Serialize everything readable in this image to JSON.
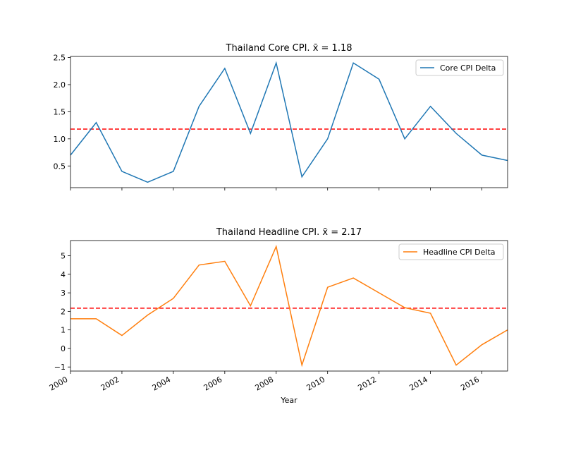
{
  "chart_data": [
    {
      "type": "line",
      "title": "Thailand Core CPI. x̄ = 1.18",
      "xlabel": "",
      "ylabel": "",
      "x": [
        2000,
        2001,
        2002,
        2003,
        2004,
        2005,
        2006,
        2007,
        2008,
        2009,
        2010,
        2011,
        2012,
        2013,
        2014,
        2015,
        2016,
        2017
      ],
      "series": [
        {
          "name": "Core CPI Delta",
          "color": "#1f77b4",
          "values": [
            0.7,
            1.3,
            0.4,
            0.2,
            0.4,
            1.6,
            2.3,
            1.1,
            2.4,
            0.3,
            1.0,
            2.4,
            2.1,
            1.0,
            1.6,
            1.1,
            0.7,
            0.6
          ]
        }
      ],
      "mean": 1.18,
      "mean_line_color": "#ff0000",
      "xlim": [
        2000,
        2017
      ],
      "ylim": [
        0.1,
        2.52
      ],
      "yticks": [
        0.5,
        1.0,
        1.5,
        2.0,
        2.5
      ],
      "ytick_labels": [
        "0.5",
        "1.0",
        "1.5",
        "2.0",
        "2.5"
      ],
      "legend": "top-right",
      "show_x_tick_labels": false
    },
    {
      "type": "line",
      "title": "Thailand Headline CPI. x̄ = 2.17",
      "xlabel": "Year",
      "ylabel": "",
      "x": [
        2000,
        2001,
        2002,
        2003,
        2004,
        2005,
        2006,
        2007,
        2008,
        2009,
        2010,
        2011,
        2012,
        2013,
        2014,
        2015,
        2016,
        2017
      ],
      "series": [
        {
          "name": "Headline CPI Delta",
          "color": "#ff7f0e",
          "values": [
            1.6,
            1.6,
            0.7,
            1.8,
            2.7,
            4.5,
            4.7,
            2.3,
            5.5,
            -0.9,
            3.3,
            3.8,
            3.0,
            2.2,
            1.9,
            -0.9,
            0.2,
            1.0
          ]
        }
      ],
      "mean": 2.17,
      "mean_line_color": "#ff0000",
      "xlim": [
        2000,
        2017
      ],
      "ylim": [
        -1.22,
        5.82
      ],
      "yticks": [
        -1,
        0,
        1,
        2,
        3,
        4,
        5
      ],
      "ytick_labels": [
        "−1",
        "0",
        "1",
        "2",
        "3",
        "4",
        "5"
      ],
      "xticks": [
        2000,
        2002,
        2004,
        2006,
        2008,
        2010,
        2012,
        2014,
        2016
      ],
      "xtick_labels": [
        "2000",
        "2002",
        "2004",
        "2006",
        "2008",
        "2010",
        "2012",
        "2014",
        "2016"
      ],
      "legend": "top-right",
      "show_x_tick_labels": true
    }
  ]
}
